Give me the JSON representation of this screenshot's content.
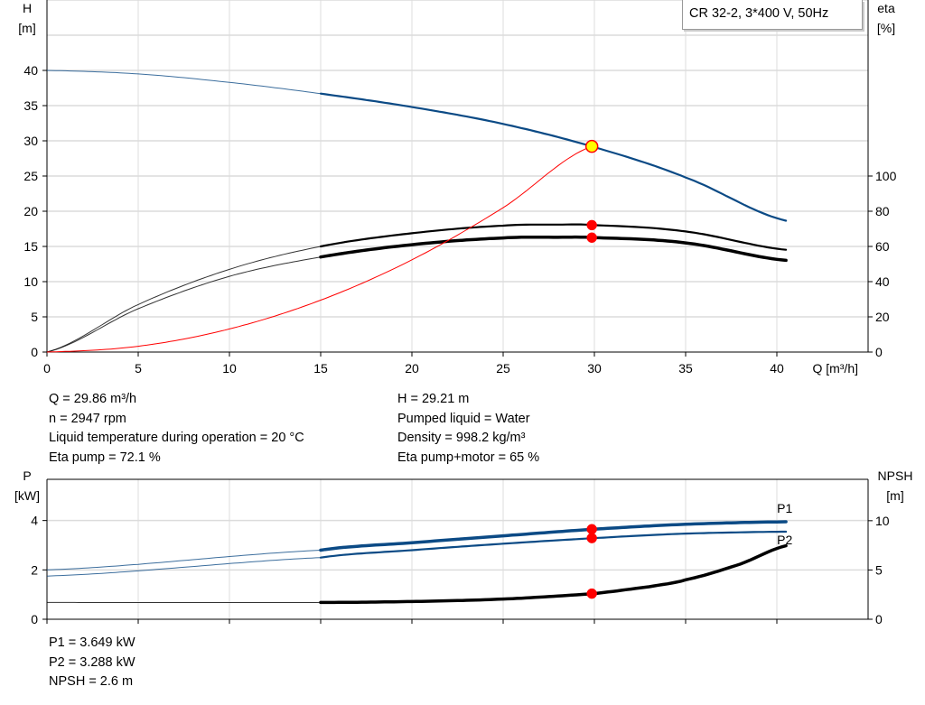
{
  "title_box": "CR 32-2, 3*400 V, 50Hz",
  "chart_data": [
    {
      "type": "line",
      "xlabel": "Q [m³/h]",
      "ylabel_left": [
        "H",
        "[m]"
      ],
      "ylabel_right": [
        "eta",
        "[%]"
      ],
      "xlim": [
        0,
        45
      ],
      "ylim_left": [
        0,
        50
      ],
      "ylim_right": [
        0,
        200
      ],
      "x_ticks": [
        "0",
        "5",
        "10",
        "15",
        "20",
        "25",
        "30",
        "35",
        "40"
      ],
      "y_ticks_left": [
        "0",
        "5",
        "10",
        "15",
        "20",
        "25",
        "30",
        "35",
        "40"
      ],
      "y_ticks_right": [
        "0",
        "20",
        "40",
        "60",
        "80",
        "100"
      ],
      "grid": true,
      "series": [
        {
          "axis": "left",
          "color": "#0b4a85",
          "thick_from": 15,
          "x": [
            0,
            5,
            10,
            15,
            20,
            25,
            30,
            35,
            40.6
          ],
          "y": [
            40,
            39.5,
            38.3,
            36.7,
            34.8,
            32.4,
            29.1,
            24.8,
            18.6
          ]
        },
        {
          "axis": "right",
          "color": "#000000",
          "thick_from": 15,
          "x": [
            0,
            5,
            10,
            15,
            20,
            25,
            28,
            30,
            35,
            40.6
          ],
          "y": [
            0,
            27,
            47,
            60,
            67.5,
            71.8,
            72.4,
            72.1,
            68.5,
            58
          ]
        },
        {
          "axis": "right",
          "color": "#000000",
          "thick_from": 15,
          "width": "heavy",
          "x": [
            0,
            5,
            10,
            15,
            20,
            25,
            28,
            30,
            35,
            40.6
          ],
          "y": [
            0,
            24.6,
            43,
            54,
            61,
            64.8,
            65.2,
            65,
            62,
            52
          ]
        },
        {
          "axis": "left",
          "color": "#ff0000",
          "thin": true,
          "x": [
            0,
            5,
            10,
            15,
            20,
            25,
            29.86
          ],
          "y": [
            0,
            0.82,
            3.28,
            7.37,
            13.1,
            20.5,
            29.21
          ]
        }
      ],
      "markers": [
        {
          "axis": "left",
          "x": 29.86,
          "y": 29.21,
          "fill": "#ffff00"
        },
        {
          "axis": "right",
          "x": 29.86,
          "y": 72.1,
          "fill": "#ff0000"
        },
        {
          "axis": "right",
          "x": 29.86,
          "y": 65,
          "fill": "#ff0000"
        }
      ]
    },
    {
      "type": "line",
      "ylabel_left": [
        "P",
        "[kW]"
      ],
      "ylabel_right": [
        "NPSH",
        "[m]"
      ],
      "xlim": [
        0,
        45
      ],
      "ylim_left": [
        0,
        5.67
      ],
      "ylim_right": [
        0,
        14.2
      ],
      "y_ticks_left": [
        "0",
        "2",
        "4"
      ],
      "y_ticks_right": [
        "0",
        "5",
        "10"
      ],
      "grid": true,
      "series": [
        {
          "name": "P1",
          "axis": "left",
          "color": "#0b4a85",
          "thick_from": 15,
          "width": "heavy",
          "x": [
            0,
            15,
            20,
            25,
            30,
            35,
            40.6
          ],
          "y": [
            2.0,
            2.8,
            3.1,
            3.38,
            3.649,
            3.85,
            3.95
          ]
        },
        {
          "name": "P2",
          "axis": "left",
          "color": "#0b4a85",
          "thick_from": 15,
          "x": [
            0,
            15,
            20,
            25,
            30,
            35,
            40.6
          ],
          "y": [
            1.75,
            2.5,
            2.8,
            3.06,
            3.288,
            3.47,
            3.55
          ]
        },
        {
          "axis": "right",
          "color": "#000000",
          "thick_from": 15,
          "width": "heavy",
          "x": [
            0,
            15,
            20,
            25,
            30,
            33,
            35,
            38,
            40.6
          ],
          "y": [
            1.7,
            1.7,
            1.8,
            2.05,
            2.6,
            3.3,
            4.0,
            5.6,
            7.5
          ]
        }
      ],
      "markers": [
        {
          "axis": "left",
          "x": 29.86,
          "y": 3.649,
          "fill": "#ff0000"
        },
        {
          "axis": "left",
          "x": 29.86,
          "y": 3.288,
          "fill": "#ff0000"
        },
        {
          "axis": "right",
          "x": 29.86,
          "y": 2.6,
          "fill": "#ff0000"
        }
      ]
    }
  ],
  "info_left": [
    "Q = 29.86 m³/h",
    "n = 2947 rpm",
    "Liquid temperature during operation = 20 °C",
    "Eta pump = 72.1 %"
  ],
  "info_right": [
    "H = 29.21 m",
    "Pumped liquid = Water",
    "Density = 998.2 kg/m³",
    "Eta pump+motor = 65 %"
  ],
  "info_bottom": [
    "P1 = 3.649 kW",
    "P2 = 3.288 kW",
    "NPSH = 2.6 m"
  ]
}
